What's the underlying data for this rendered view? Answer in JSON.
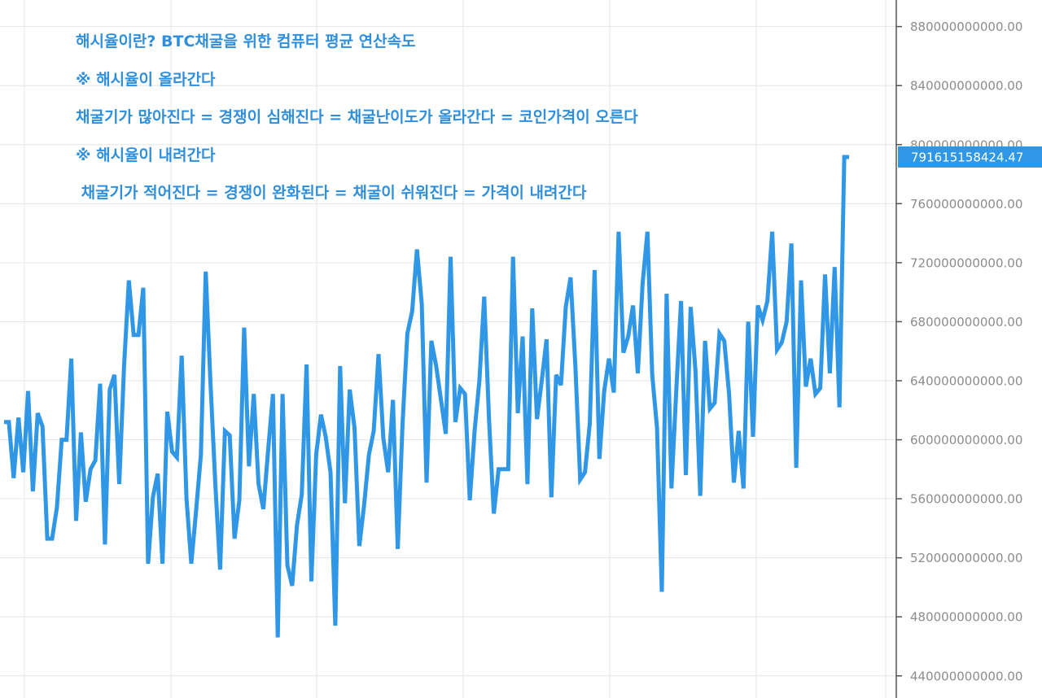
{
  "chart_data": {
    "type": "line",
    "title": "",
    "xlabel": "",
    "ylabel": "",
    "ylim": [
      425000000000,
      898000000000
    ],
    "y_ticks": [
      "880000000000.00",
      "840000000000.00",
      "800000000000.00",
      "760000000000.00",
      "720000000000.00",
      "680000000000.00",
      "640000000000.00",
      "600000000000.00",
      "560000000000.00",
      "520000000000.00",
      "480000000000.00",
      "440000000000.00"
    ],
    "y_tick_values": [
      880000000000,
      840000000000,
      800000000000,
      760000000000,
      720000000000,
      680000000000,
      640000000000,
      600000000000,
      560000000000,
      520000000000,
      480000000000,
      440000000000
    ],
    "last_value_label": "791615158424.47",
    "grid": true,
    "series": [
      {
        "color": "#2f97e6",
        "values": [
          612000000000,
          612000000000,
          574000000000,
          615000000000,
          578000000000,
          633000000000,
          565000000000,
          618000000000,
          609000000000,
          533000000000,
          533000000000,
          554000000000,
          600000000000,
          600000000000,
          655000000000,
          545000000000,
          605000000000,
          558000000000,
          580000000000,
          586000000000,
          638000000000,
          529000000000,
          634000000000,
          644000000000,
          570000000000,
          650000000000,
          708000000000,
          671000000000,
          671000000000,
          703000000000,
          516000000000,
          561000000000,
          577000000000,
          516000000000,
          619000000000,
          592000000000,
          588000000000,
          657000000000,
          560000000000,
          516000000000,
          552000000000,
          590000000000,
          714000000000,
          638000000000,
          570000000000,
          512000000000,
          606000000000,
          603000000000,
          533000000000,
          559000000000,
          676000000000,
          582000000000,
          631000000000,
          570000000000,
          553000000000,
          593000000000,
          631000000000,
          466000000000,
          631000000000,
          515000000000,
          501000000000,
          542000000000,
          563000000000,
          651000000000,
          504000000000,
          590000000000,
          617000000000,
          602000000000,
          578000000000,
          474000000000,
          650000000000,
          557000000000,
          634000000000,
          608000000000,
          528000000000,
          556000000000,
          590000000000,
          606000000000,
          658000000000,
          601000000000,
          578000000000,
          627000000000,
          526000000000,
          611000000000,
          672000000000,
          687000000000,
          729000000000,
          692000000000,
          571000000000,
          667000000000,
          650000000000,
          627000000000,
          604000000000,
          724000000000,
          612000000000,
          635000000000,
          631000000000,
          559000000000,
          606000000000,
          640000000000,
          697000000000,
          614000000000,
          550000000000,
          580000000000,
          580000000000,
          580000000000,
          724000000000,
          618000000000,
          670000000000,
          570000000000,
          689000000000,
          614000000000,
          640000000000,
          668000000000,
          561000000000,
          644000000000,
          637000000000,
          690000000000,
          710000000000,
          650000000000,
          573000000000,
          578000000000,
          611000000000,
          715000000000,
          587000000000,
          633000000000,
          655000000000,
          632000000000,
          741000000000,
          659000000000,
          670000000000,
          691000000000,
          645000000000,
          706000000000,
          741000000000,
          644000000000,
          608000000000,
          497000000000,
          699000000000,
          567000000000,
          633000000000,
          694000000000,
          576000000000,
          690000000000,
          647000000000,
          562000000000,
          667000000000,
          621000000000,
          625000000000,
          672000000000,
          667000000000,
          631000000000,
          571000000000,
          606000000000,
          567000000000,
          680000000000,
          602000000000,
          691000000000,
          681000000000,
          694000000000,
          741000000000,
          661000000000,
          666000000000,
          680000000000,
          733000000000,
          581000000000,
          708000000000,
          636000000000,
          655000000000,
          631000000000,
          635000000000,
          712000000000,
          645000000000,
          717000000000,
          622000000000,
          791615158424,
          791615158424
        ]
      }
    ]
  },
  "annotations": [
    "해시율이란? BTC채굴을 위한 컴퓨터 평균 연산속도",
    "※ 해시율이 올라간다",
    "채굴기가 많아진다 = 경쟁이 심해진다 = 채굴난이도가 올라간다 = 코인가격이 오른다",
    "※ 해시율이 내려간다",
    " 채굴기가 적어진다 = 경쟁이 완화된다 = 채굴이 쉬워진다 = 가격이 내려간다"
  ]
}
